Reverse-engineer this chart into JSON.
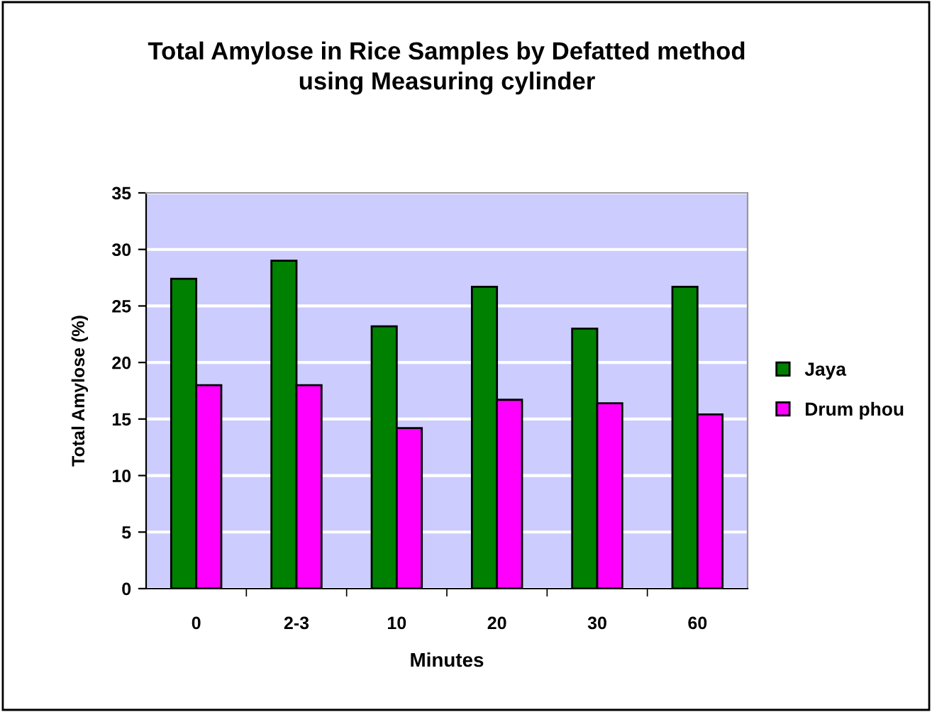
{
  "chart_data": {
    "type": "bar",
    "title": "Total Amylose in Rice Samples by Defatted method\nusing Measuring cylinder",
    "xlabel": "Minutes",
    "ylabel": "Total Amylose (%)",
    "categories": [
      "0",
      "2-3",
      "10",
      "20",
      "30",
      "60"
    ],
    "series": [
      {
        "name": "Jaya",
        "color": "#008000",
        "values": [
          27.4,
          29.0,
          23.2,
          26.7,
          23.0,
          26.7
        ]
      },
      {
        "name": "Drum phou",
        "color": "#ff00ff",
        "values": [
          18.0,
          18.0,
          14.2,
          16.7,
          16.4,
          15.4
        ]
      }
    ],
    "ylim": [
      0,
      35
    ],
    "yticks": [
      0,
      5,
      10,
      15,
      20,
      25,
      30,
      35
    ],
    "grid": "y",
    "legend": "right"
  }
}
